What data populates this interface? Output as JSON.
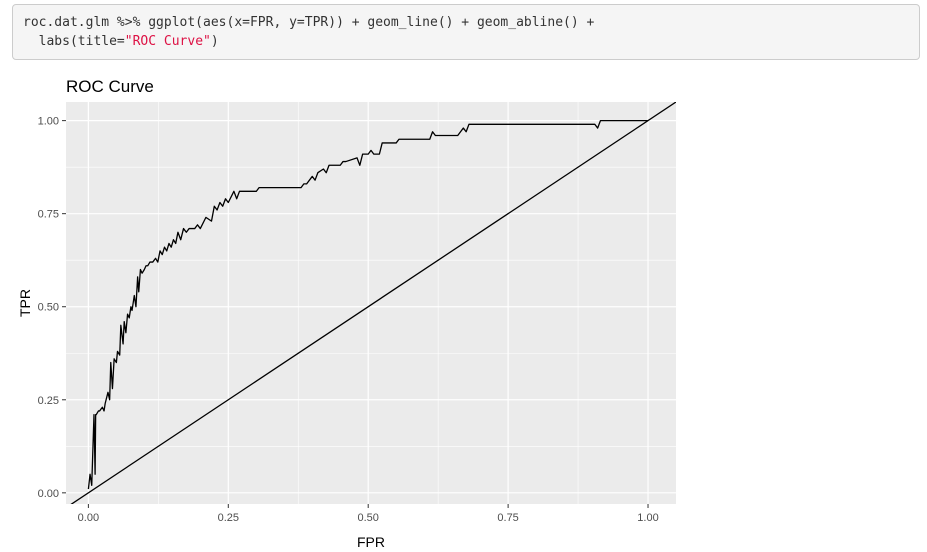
{
  "code": {
    "line1": "roc.dat.glm %>% ggplot(aes(x=FPR, y=TPR)) + geom_line() + geom_abline() +",
    "line2_prefix": "  labs(title=",
    "line2_string": "\"ROC Curve\"",
    "line2_suffix": ")"
  },
  "chart_data": {
    "type": "line",
    "title": "ROC Curve",
    "xlabel": "FPR",
    "ylabel": "TPR",
    "xlim": [
      -0.04,
      1.05
    ],
    "ylim": [
      -0.03,
      1.05
    ],
    "x_ticks": [
      0.0,
      0.25,
      0.5,
      0.75,
      1.0
    ],
    "x_tick_labels": [
      "0.00",
      "0.25",
      "0.50",
      "0.75",
      "1.00"
    ],
    "y_ticks": [
      0.0,
      0.25,
      0.5,
      0.75,
      1.0
    ],
    "y_tick_labels": [
      "0.00",
      "0.25",
      "0.50",
      "0.75",
      "1.00"
    ],
    "grid": true,
    "abline": {
      "intercept": 0,
      "slope": 1
    },
    "series": [
      {
        "x": [
          0.0,
          0.003,
          0.006,
          0.01,
          0.012,
          0.013,
          0.014,
          0.018,
          0.02,
          0.025,
          0.028,
          0.03,
          0.035,
          0.038,
          0.04,
          0.043,
          0.046,
          0.05,
          0.052,
          0.056,
          0.058,
          0.062,
          0.064,
          0.067,
          0.07,
          0.073,
          0.076,
          0.078,
          0.082,
          0.085,
          0.088,
          0.09,
          0.093,
          0.096,
          0.1,
          0.103,
          0.106,
          0.11,
          0.115,
          0.12,
          0.124,
          0.128,
          0.132,
          0.136,
          0.14,
          0.144,
          0.148,
          0.152,
          0.156,
          0.16,
          0.165,
          0.17,
          0.175,
          0.18,
          0.185,
          0.19,
          0.195,
          0.2,
          0.21,
          0.22,
          0.225,
          0.23,
          0.235,
          0.24,
          0.245,
          0.25,
          0.26,
          0.265,
          0.27,
          0.3,
          0.305,
          0.31,
          0.38,
          0.385,
          0.39,
          0.4,
          0.405,
          0.41,
          0.42,
          0.425,
          0.43,
          0.45,
          0.455,
          0.46,
          0.48,
          0.485,
          0.49,
          0.5,
          0.505,
          0.51,
          0.52,
          0.525,
          0.53,
          0.55,
          0.555,
          0.56,
          0.6,
          0.61,
          0.615,
          0.62,
          0.66,
          0.665,
          0.67,
          0.675,
          0.68,
          0.9,
          0.905,
          0.91,
          0.915,
          0.92,
          1.0
        ],
        "y": [
          0.01,
          0.05,
          0.02,
          0.21,
          0.05,
          0.21,
          0.21,
          0.22,
          0.22,
          0.23,
          0.22,
          0.24,
          0.27,
          0.25,
          0.35,
          0.28,
          0.36,
          0.35,
          0.38,
          0.37,
          0.45,
          0.4,
          0.46,
          0.43,
          0.48,
          0.47,
          0.5,
          0.49,
          0.53,
          0.5,
          0.58,
          0.54,
          0.6,
          0.59,
          0.6,
          0.61,
          0.61,
          0.62,
          0.62,
          0.63,
          0.62,
          0.65,
          0.64,
          0.66,
          0.65,
          0.67,
          0.66,
          0.68,
          0.67,
          0.7,
          0.68,
          0.71,
          0.7,
          0.71,
          0.71,
          0.71,
          0.72,
          0.71,
          0.74,
          0.73,
          0.77,
          0.76,
          0.78,
          0.77,
          0.79,
          0.78,
          0.81,
          0.79,
          0.81,
          0.81,
          0.82,
          0.82,
          0.82,
          0.83,
          0.83,
          0.85,
          0.84,
          0.86,
          0.87,
          0.86,
          0.88,
          0.88,
          0.89,
          0.89,
          0.9,
          0.88,
          0.91,
          0.91,
          0.92,
          0.91,
          0.91,
          0.94,
          0.94,
          0.94,
          0.95,
          0.95,
          0.95,
          0.95,
          0.97,
          0.96,
          0.96,
          0.97,
          0.98,
          0.97,
          0.99,
          0.99,
          0.99,
          0.98,
          1.0,
          1.0,
          1.0
        ]
      }
    ]
  }
}
